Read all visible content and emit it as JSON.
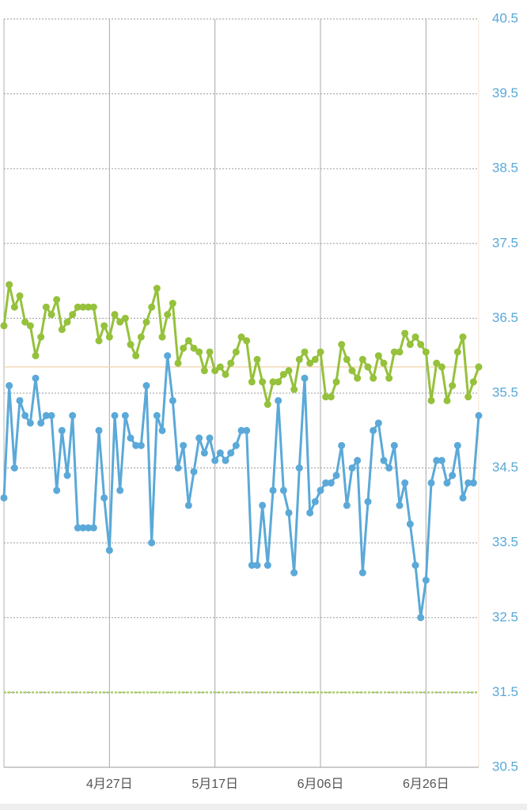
{
  "chart_data": {
    "type": "line",
    "categories": [
      null,
      null,
      null,
      null,
      null,
      null,
      null,
      null,
      null,
      null,
      null,
      null,
      null,
      null,
      null,
      null,
      null,
      null,
      null,
      null,
      "4月27日",
      null,
      null,
      null,
      null,
      null,
      null,
      null,
      null,
      null,
      null,
      null,
      null,
      null,
      null,
      null,
      null,
      null,
      null,
      null,
      "5月17日",
      null,
      null,
      null,
      null,
      null,
      null,
      null,
      null,
      null,
      null,
      null,
      null,
      null,
      null,
      null,
      null,
      null,
      null,
      null,
      "6月06日",
      null,
      null,
      null,
      null,
      null,
      null,
      null,
      null,
      null,
      null,
      null,
      null,
      null,
      null,
      null,
      null,
      null,
      null,
      null,
      "6月26日",
      null,
      null,
      null,
      null,
      null,
      null,
      null,
      null,
      null,
      null
    ],
    "series": [
      {
        "color": "#95c13b",
        "values": [
          36.4,
          36.95,
          36.65,
          36.8,
          36.45,
          36.4,
          36.0,
          36.25,
          36.65,
          36.55,
          36.75,
          36.35,
          36.45,
          36.55,
          36.65,
          36.65,
          36.65,
          36.65,
          36.2,
          36.4,
          36.25,
          36.55,
          36.45,
          36.5,
          36.15,
          36.0,
          36.25,
          36.45,
          36.65,
          36.9,
          36.25,
          36.55,
          36.7,
          35.9,
          36.1,
          36.2,
          36.1,
          36.05,
          35.8,
          36.05,
          35.8,
          35.85,
          35.75,
          35.9,
          36.05,
          36.25,
          36.2,
          35.65,
          35.95,
          35.65,
          35.35,
          35.65,
          35.65,
          35.75,
          35.8,
          35.55,
          35.95,
          36.05,
          35.9,
          35.95,
          36.05,
          35.45,
          35.45,
          35.65,
          36.15,
          35.95,
          35.8,
          35.7,
          35.95,
          35.85,
          35.7,
          36.0,
          35.9,
          35.7,
          36.05,
          36.05,
          36.3,
          36.15,
          36.25,
          36.15,
          36.05,
          35.4,
          35.9,
          35.85,
          35.4,
          35.6,
          36.05,
          36.25,
          35.45,
          35.65,
          35.85
        ]
      },
      {
        "color": "#5aa9d8",
        "values": [
          34.1,
          35.6,
          34.5,
          35.4,
          35.2,
          35.1,
          35.7,
          35.1,
          35.2,
          35.2,
          34.2,
          35.0,
          34.4,
          35.2,
          33.7,
          33.7,
          33.7,
          33.7,
          35.0,
          34.1,
          33.4,
          35.2,
          34.2,
          35.2,
          34.9,
          34.8,
          34.8,
          35.6,
          33.5,
          35.2,
          35.0,
          36.0,
          35.4,
          34.5,
          34.8,
          34.0,
          34.45,
          34.9,
          34.7,
          34.9,
          34.6,
          34.7,
          34.6,
          34.7,
          34.8,
          35.0,
          35.0,
          33.2,
          33.2,
          34.0,
          33.2,
          34.2,
          35.4,
          34.2,
          33.9,
          33.1,
          34.5,
          35.7,
          33.9,
          34.05,
          34.2,
          34.3,
          34.3,
          34.4,
          34.8,
          34.0,
          34.5,
          34.6,
          33.1,
          34.05,
          35.0,
          35.1,
          34.6,
          34.5,
          34.8,
          34.0,
          34.3,
          33.75,
          33.2,
          32.5,
          33.0,
          34.3,
          34.6,
          34.6,
          34.3,
          34.4,
          34.8,
          34.1,
          34.3,
          34.3,
          35.2
        ]
      }
    ],
    "reference_lines": [
      {
        "value": 35.85,
        "color": "#f3d9b8"
      },
      {
        "value": 31.5,
        "color": "#a9cf6a"
      }
    ],
    "ylim": [
      30.5,
      40.5
    ],
    "yticks": [
      30.5,
      31.5,
      32.5,
      33.5,
      34.5,
      35.5,
      36.5,
      37.5,
      38.5,
      39.5,
      40.5
    ],
    "grid": true,
    "tick_color": "#5aa9d8"
  }
}
